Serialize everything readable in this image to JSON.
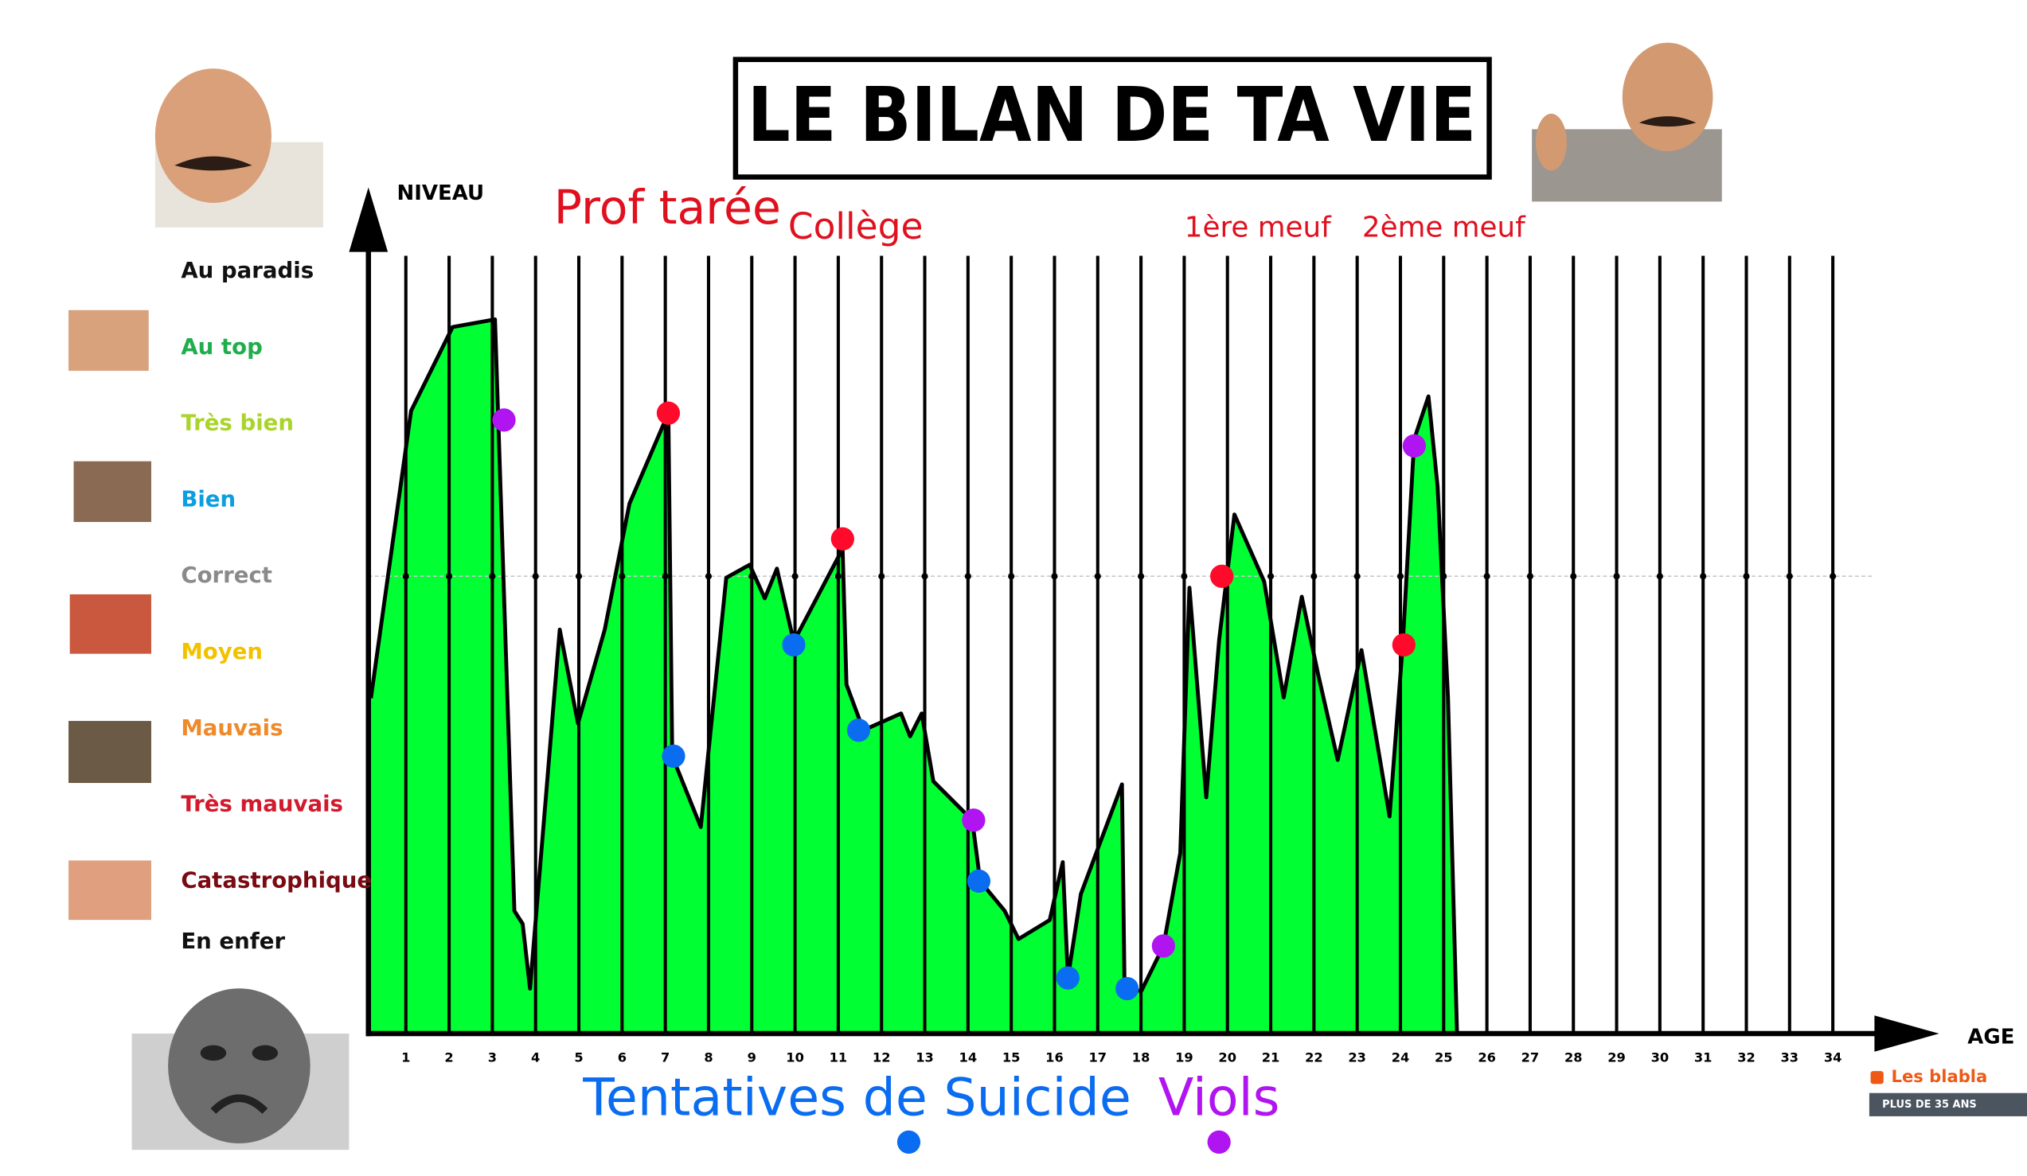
{
  "chart_data": {
    "type": "area",
    "title": "LE BILAN DE TA VIE",
    "ylabel": "NIVEAU",
    "xlabel": "AGE",
    "xlim": [
      0,
      36
    ],
    "ylim": [
      0,
      11
    ],
    "xticks": [
      1,
      2,
      3,
      4,
      5,
      6,
      7,
      8,
      9,
      10,
      11,
      12,
      13,
      14,
      15,
      16,
      17,
      18,
      19,
      20,
      21,
      22,
      23,
      24,
      25,
      26,
      27,
      28,
      29,
      30,
      31,
      32,
      33,
      34
    ],
    "yticks": [
      {
        "value": 10,
        "label": "Au paradis",
        "color": "#111111"
      },
      {
        "value": 9,
        "label": "Au top",
        "color": "#1fae4b"
      },
      {
        "value": 8,
        "label": "Très bien",
        "color": "#a9d42a"
      },
      {
        "value": 7,
        "label": "Bien",
        "color": "#0c9ee0"
      },
      {
        "value": 6,
        "label": "Correct",
        "color": "#8a8a8a"
      },
      {
        "value": 5,
        "label": "Moyen",
        "color": "#f2c200"
      },
      {
        "value": 4,
        "label": "Mauvais",
        "color": "#ef8a2a"
      },
      {
        "value": 3,
        "label": "Très mauvais",
        "color": "#d21a2c"
      },
      {
        "value": 2,
        "label": "Catastrophique",
        "color": "#7a0b12"
      },
      {
        "value": 1.2,
        "label": "En enfer",
        "color": "#111111"
      }
    ],
    "reference_level": 6,
    "color": "#00ff33",
    "x": [
      0.19,
      1.12,
      2.08,
      3.06,
      3.51,
      3.7,
      3.87,
      4.56,
      4.98,
      5.6,
      6.17,
      7.07,
      7.16,
      7.82,
      8.41,
      8.95,
      9.3,
      9.58,
      9.97,
      11.1,
      11.19,
      11.58,
      12.45,
      12.66,
      12.93,
      13.2,
      14.1,
      14.28,
      14.85,
      15.17,
      15.89,
      16.19,
      16.31,
      16.61,
      17.56,
      17.62,
      18.01,
      18.52,
      18.91,
      19.12,
      19.51,
      19.81,
      20.16,
      20.85,
      21.3,
      21.72,
      22.1,
      22.55,
      23.1,
      23.75,
      24.05,
      24.32,
      24.65,
      24.86,
      25.1,
      25.31
    ],
    "values": [
      4.4,
      8.17,
      9.27,
      9.37,
      1.61,
      1.44,
      0.59,
      5.3,
      4.07,
      5.3,
      6.95,
      8.14,
      3.64,
      2.71,
      5.98,
      6.15,
      5.71,
      6.1,
      5.14,
      6.36,
      4.58,
      3.98,
      4.2,
      3.9,
      4.2,
      3.31,
      2.8,
      2.0,
      1.61,
      1.24,
      1.49,
      2.25,
      0.73,
      1.83,
      3.27,
      0.59,
      0.56,
      1.15,
      2.37,
      5.85,
      3.1,
      5.17,
      6.81,
      5.93,
      4.41,
      5.73,
      4.71,
      3.59,
      5.03,
      2.85,
      5.08,
      7.8,
      8.36,
      7.17,
      4.41,
      0
    ],
    "points": [
      {
        "color": "#ff0a2a",
        "x": [
          7.07,
          11.1,
          19.87,
          24.08
        ],
        "values": [
          8.14,
          6.49,
          6.0,
          5.1
        ]
      },
      {
        "name": "Tentatives de Suicide",
        "color": "#0a6cf0",
        "x": [
          7.19,
          9.97,
          11.47,
          14.25,
          16.31,
          17.68
        ],
        "values": [
          3.64,
          5.1,
          3.98,
          2.0,
          0.73,
          0.59
        ]
      },
      {
        "name": "Viols",
        "color": "#b014f0",
        "x": [
          3.27,
          14.13,
          18.52,
          24.32
        ],
        "values": [
          8.05,
          2.8,
          1.15,
          7.71
        ]
      }
    ],
    "annotations": [
      {
        "text": "Prof tarée",
        "x": 7.05,
        "size": 36
      },
      {
        "text": "Collège",
        "x": 11.4,
        "size": 28
      },
      {
        "text": "1ère meuf",
        "x": 20.7,
        "size": 22
      },
      {
        "text": "2ème meuf",
        "x": 25.0,
        "size": 22
      }
    ]
  },
  "widget": {
    "title": "Les blabla",
    "subtitle": "PLUS DE 35 ANS"
  }
}
